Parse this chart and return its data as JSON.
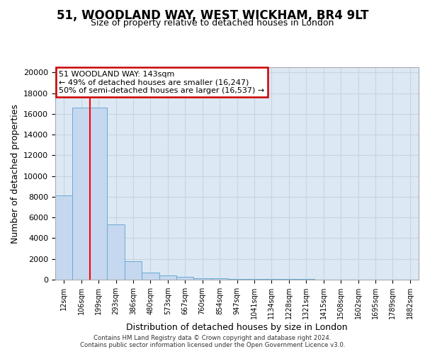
{
  "title": "51, WOODLAND WAY, WEST WICKHAM, BR4 9LT",
  "subtitle": "Size of property relative to detached houses in London",
  "xlabel": "Distribution of detached houses by size in London",
  "ylabel": "Number of detached properties",
  "bin_labels": [
    "12sqm",
    "106sqm",
    "199sqm",
    "293sqm",
    "386sqm",
    "480sqm",
    "573sqm",
    "667sqm",
    "760sqm",
    "854sqm",
    "947sqm",
    "1041sqm",
    "1134sqm",
    "1228sqm",
    "1321sqm",
    "1415sqm",
    "1508sqm",
    "1602sqm",
    "1695sqm",
    "1789sqm",
    "1882sqm"
  ],
  "bar_heights": [
    8100,
    16600,
    16600,
    5300,
    1800,
    700,
    400,
    250,
    170,
    120,
    90,
    70,
    55,
    40,
    35,
    30,
    25,
    20,
    15,
    10,
    8
  ],
  "bar_color": "#c5d8ef",
  "bar_edge_color": "#6aaad4",
  "red_line_x": 1.5,
  "annotation_title": "51 WOODLAND WAY: 143sqm",
  "annotation_line1": "← 49% of detached houses are smaller (16,247)",
  "annotation_line2": "50% of semi-detached houses are larger (16,537) →",
  "annotation_box_color": "#ffffff",
  "annotation_box_edge": "#cc0000",
  "footer_line1": "Contains HM Land Registry data © Crown copyright and database right 2024.",
  "footer_line2": "Contains public sector information licensed under the Open Government Licence v3.0.",
  "ylim": [
    0,
    20500
  ],
  "yticks": [
    0,
    2000,
    4000,
    6000,
    8000,
    10000,
    12000,
    14000,
    16000,
    18000,
    20000
  ],
  "grid_color": "#c8d4e0",
  "bg_color": "#dce9f5",
  "title_fontsize": 12,
  "subtitle_fontsize": 9,
  "ylabel_fontsize": 9,
  "xlabel_fontsize": 9,
  "tick_fontsize": 8,
  "xtick_fontsize": 7
}
